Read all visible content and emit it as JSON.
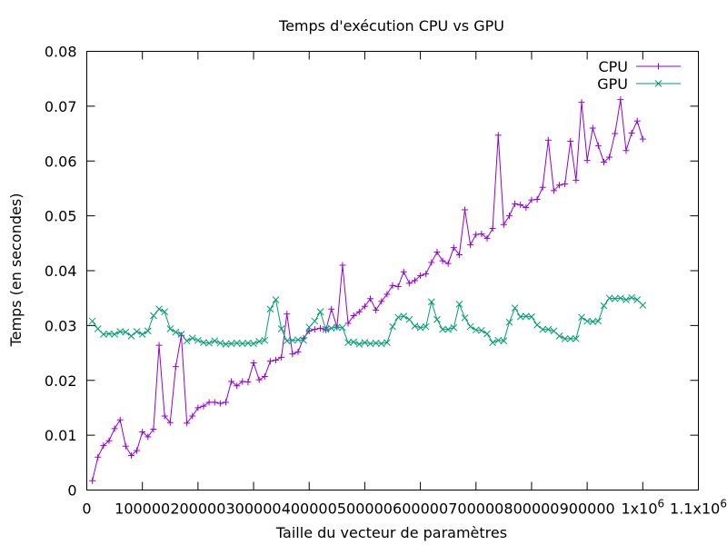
{
  "chart_data": {
    "type": "line",
    "title": "Temps d'exécution CPU vs GPU",
    "xlabel": "Taille du vecteur de paramètres",
    "ylabel": "Temps (en secondes)",
    "xlim": [
      0,
      1100000
    ],
    "ylim": [
      0,
      0.08
    ],
    "x_ticks": [
      {
        "value": 0,
        "label": "0"
      },
      {
        "value": 100000,
        "label": "100000"
      },
      {
        "value": 200000,
        "label": "200000"
      },
      {
        "value": 300000,
        "label": "300000"
      },
      {
        "value": 400000,
        "label": "400000"
      },
      {
        "value": 500000,
        "label": "500000"
      },
      {
        "value": 600000,
        "label": "600000"
      },
      {
        "value": 700000,
        "label": "700000"
      },
      {
        "value": 800000,
        "label": "800000"
      },
      {
        "value": 900000,
        "label": "900000"
      },
      {
        "value": 1000000,
        "label": "1x10",
        "sup": "6"
      },
      {
        "value": 1100000,
        "label": "1.1x10",
        "sup": "6"
      }
    ],
    "y_ticks": [
      {
        "value": 0,
        "label": "0"
      },
      {
        "value": 0.01,
        "label": "0.01"
      },
      {
        "value": 0.02,
        "label": "0.02"
      },
      {
        "value": 0.03,
        "label": "0.03"
      },
      {
        "value": 0.04,
        "label": "0.04"
      },
      {
        "value": 0.05,
        "label": "0.05"
      },
      {
        "value": 0.06,
        "label": "0.06"
      },
      {
        "value": 0.07,
        "label": "0.07"
      },
      {
        "value": 0.08,
        "label": "0.08"
      }
    ],
    "grid": false,
    "legend_position": "top-right",
    "x": [
      10000,
      20000,
      30000,
      40000,
      50000,
      60000,
      70000,
      80000,
      90000,
      100000,
      110000,
      120000,
      130000,
      140000,
      150000,
      160000,
      170000,
      180000,
      190000,
      200000,
      210000,
      220000,
      230000,
      240000,
      250000,
      260000,
      270000,
      280000,
      290000,
      300000,
      310000,
      320000,
      330000,
      340000,
      350000,
      360000,
      370000,
      380000,
      390000,
      400000,
      410000,
      420000,
      430000,
      440000,
      450000,
      460000,
      470000,
      480000,
      490000,
      500000,
      510000,
      520000,
      530000,
      540000,
      550000,
      560000,
      570000,
      580000,
      590000,
      600000,
      610000,
      620000,
      630000,
      640000,
      650000,
      660000,
      670000,
      680000,
      690000,
      700000,
      710000,
      720000,
      730000,
      740000,
      750000,
      760000,
      770000,
      780000,
      790000,
      800000,
      810000,
      820000,
      830000,
      840000,
      850000,
      860000,
      870000,
      880000,
      890000,
      900000,
      910000,
      920000,
      930000,
      940000,
      950000,
      960000,
      970000,
      980000,
      990000,
      1000000
    ],
    "series": [
      {
        "name": "CPU",
        "color": "#9400d3",
        "marker": "plus",
        "values": [
          0.0017,
          0.006,
          0.0081,
          0.009,
          0.0112,
          0.0128,
          0.008,
          0.0063,
          0.0072,
          0.0106,
          0.0097,
          0.0111,
          0.0264,
          0.0135,
          0.0123,
          0.0225,
          0.0282,
          0.0122,
          0.0135,
          0.015,
          0.0153,
          0.016,
          0.016,
          0.0158,
          0.016,
          0.0198,
          0.019,
          0.0198,
          0.0197,
          0.0232,
          0.0201,
          0.0207,
          0.0235,
          0.0237,
          0.0242,
          0.0321,
          0.0248,
          0.0252,
          0.0277,
          0.029,
          0.0293,
          0.0295,
          0.0292,
          0.033,
          0.0297,
          0.041,
          0.0304,
          0.0318,
          0.0325,
          0.0335,
          0.0349,
          0.0328,
          0.0344,
          0.0357,
          0.0373,
          0.0371,
          0.0398,
          0.0377,
          0.0382,
          0.0391,
          0.0394,
          0.0415,
          0.0434,
          0.0418,
          0.0413,
          0.0442,
          0.0429,
          0.0511,
          0.0447,
          0.0466,
          0.0467,
          0.0459,
          0.0477,
          0.0647,
          0.0484,
          0.05,
          0.0522,
          0.052,
          0.0515,
          0.0529,
          0.053,
          0.0552,
          0.0638,
          0.0546,
          0.0556,
          0.0558,
          0.0636,
          0.0565,
          0.0707,
          0.0601,
          0.066,
          0.0628,
          0.0598,
          0.0607,
          0.065,
          0.0712,
          0.0619,
          0.0651,
          0.0673,
          0.064
        ]
      },
      {
        "name": "GPU",
        "color": "#009e73",
        "marker": "cross",
        "values": [
          0.0308,
          0.0294,
          0.0284,
          0.0285,
          0.0284,
          0.0289,
          0.0288,
          0.0281,
          0.0289,
          0.0284,
          0.029,
          0.0318,
          0.033,
          0.0325,
          0.0294,
          0.0288,
          0.0284,
          0.0272,
          0.0277,
          0.0273,
          0.0269,
          0.0268,
          0.0272,
          0.0268,
          0.0266,
          0.0267,
          0.0268,
          0.0267,
          0.0268,
          0.0267,
          0.0271,
          0.0273,
          0.033,
          0.0347,
          0.0294,
          0.0272,
          0.0273,
          0.0274,
          0.0273,
          0.0297,
          0.0308,
          0.0325,
          0.0293,
          0.0295,
          0.0297,
          0.0296,
          0.0269,
          0.027,
          0.0266,
          0.0269,
          0.0267,
          0.0268,
          0.0267,
          0.0269,
          0.0298,
          0.0315,
          0.0317,
          0.0311,
          0.0299,
          0.0296,
          0.0298,
          0.0343,
          0.0311,
          0.0293,
          0.0293,
          0.0296,
          0.0339,
          0.0314,
          0.0298,
          0.0292,
          0.0291,
          0.0285,
          0.0269,
          0.0273,
          0.0272,
          0.0306,
          0.0332,
          0.0316,
          0.0317,
          0.0316,
          0.0301,
          0.0293,
          0.0293,
          0.029,
          0.0281,
          0.0276,
          0.0276,
          0.0276,
          0.0315,
          0.0308,
          0.0307,
          0.0308,
          0.0336,
          0.035,
          0.0349,
          0.035,
          0.0347,
          0.0351,
          0.0347,
          0.0337
        ]
      }
    ]
  }
}
